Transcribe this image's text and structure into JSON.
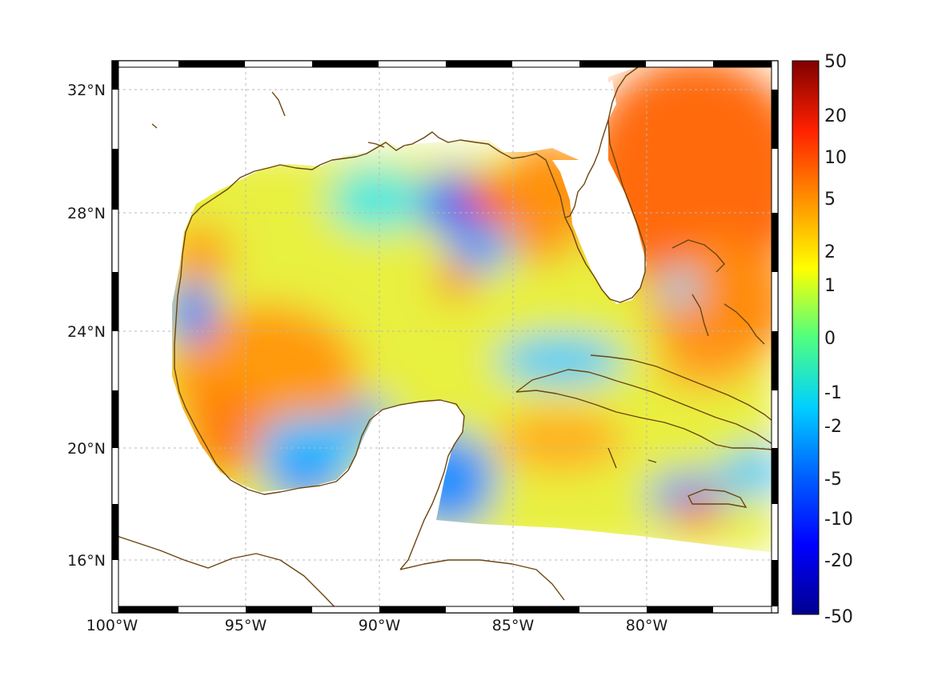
{
  "map": {
    "projection": "equirectangular",
    "lon_range": [
      -100,
      -75
    ],
    "lat_range": [
      14,
      33
    ],
    "grid": true,
    "frame_style": "alternating black/white border",
    "coastline_color": "#6b4510",
    "land_color": "#ffffff",
    "lon_ticks": [
      {
        "value": -100,
        "label": "100°W"
      },
      {
        "value": -95,
        "label": "95°W"
      },
      {
        "value": -90,
        "label": "90°W"
      },
      {
        "value": -85,
        "label": "85°W"
      },
      {
        "value": -80,
        "label": "80°W"
      }
    ],
    "lat_ticks": [
      {
        "value": 32,
        "label": "32°N"
      },
      {
        "value": 28,
        "label": "28°N"
      },
      {
        "value": 24,
        "label": "24°N"
      },
      {
        "value": 20,
        "label": "20°N"
      },
      {
        "value": 16,
        "label": "16°N"
      }
    ]
  },
  "colorbar": {
    "colormap": "jet",
    "scale": "signed logarithmic",
    "placement": "right",
    "ticks": [
      "50",
      "20",
      "10",
      "5",
      "2",
      "1",
      "0",
      "-1",
      "-2",
      "-5",
      "-10",
      "-20",
      "-50"
    ],
    "tick_values": [
      50,
      20,
      10,
      5,
      2,
      1,
      0,
      -1,
      -2,
      -5,
      -10,
      -20,
      -50
    ]
  },
  "chart_data": {
    "type": "heatmap",
    "title": "",
    "xlabel": "",
    "ylabel": "",
    "value_range": [
      -50,
      50
    ],
    "regions": [
      {
        "area": "Atlantic east of Florida",
        "approx_value": 5
      },
      {
        "area": "Western Gulf (Texas / Tamaulipas shelf)",
        "approx_value": 3
      },
      {
        "area": "Bay of Campeche",
        "approx_value": -3
      },
      {
        "area": "North-central Gulf south of Mississippi River",
        "approx_value": -8
      },
      {
        "area": "West Florida shelf / Apalachee Bay",
        "approx_value": 5
      },
      {
        "area": "Yucatan Channel / northwestern Caribbean",
        "approx_value": -4
      },
      {
        "area": "Central Gulf",
        "approx_value": 1
      },
      {
        "area": "South of Cuba",
        "approx_value": 3
      }
    ]
  }
}
